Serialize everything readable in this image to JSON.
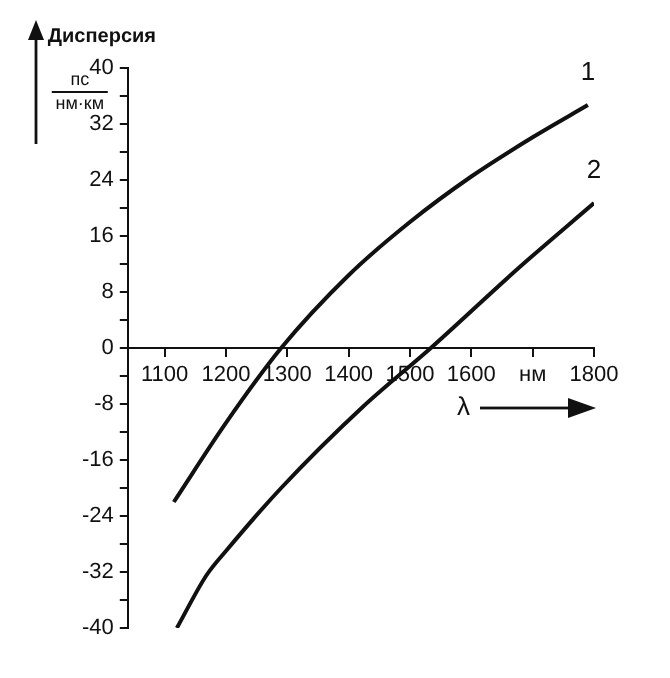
{
  "chart_data": {
    "type": "line",
    "ylabel": "Дисперсия",
    "xlabel": "λ",
    "annotations": [
      "пс",
      "нм·км",
      "1",
      "2"
    ],
    "xlim": [
      1040,
      1800
    ],
    "xticks": [
      1100,
      1200,
      1300,
      1400,
      1500,
      1600,
      {
        "value": 1700,
        "label": "нм"
      },
      1800
    ],
    "ylim": [
      -40,
      40
    ],
    "yticks": [
      -40,
      {
        "value": -36,
        "label": null
      },
      -32,
      {
        "value": -28,
        "label": null
      },
      -24,
      {
        "value": -20,
        "label": null
      },
      -16,
      {
        "value": -12,
        "label": null
      },
      -8,
      {
        "value": -4,
        "label": null
      },
      0,
      {
        "value": 4,
        "label": null
      },
      8,
      {
        "value": 12,
        "label": null
      },
      16,
      {
        "value": 20,
        "label": null
      },
      24,
      {
        "value": 28,
        "label": null
      },
      32,
      {
        "value": 36,
        "label": null
      },
      40
    ],
    "grid": false,
    "legend": false,
    "marker": "none",
    "line_style": "solid",
    "series": [
      {
        "color": "#111111",
        "x": [
          1115,
          1200,
          1290,
          1400,
          1500,
          1600,
          1700,
          1790
        ],
        "values": [
          -22,
          -10.7,
          0,
          10.4,
          18,
          24.5,
          30.1,
          34.7
        ]
      },
      {
        "color": "#111111",
        "x": [
          1120,
          1168,
          1200,
          1290,
          1422,
          1534,
          1678,
          1800
        ],
        "values": [
          -40,
          -32.5,
          -29,
          -20,
          -8.5,
          0,
          11.5,
          20.7
        ]
      }
    ]
  }
}
